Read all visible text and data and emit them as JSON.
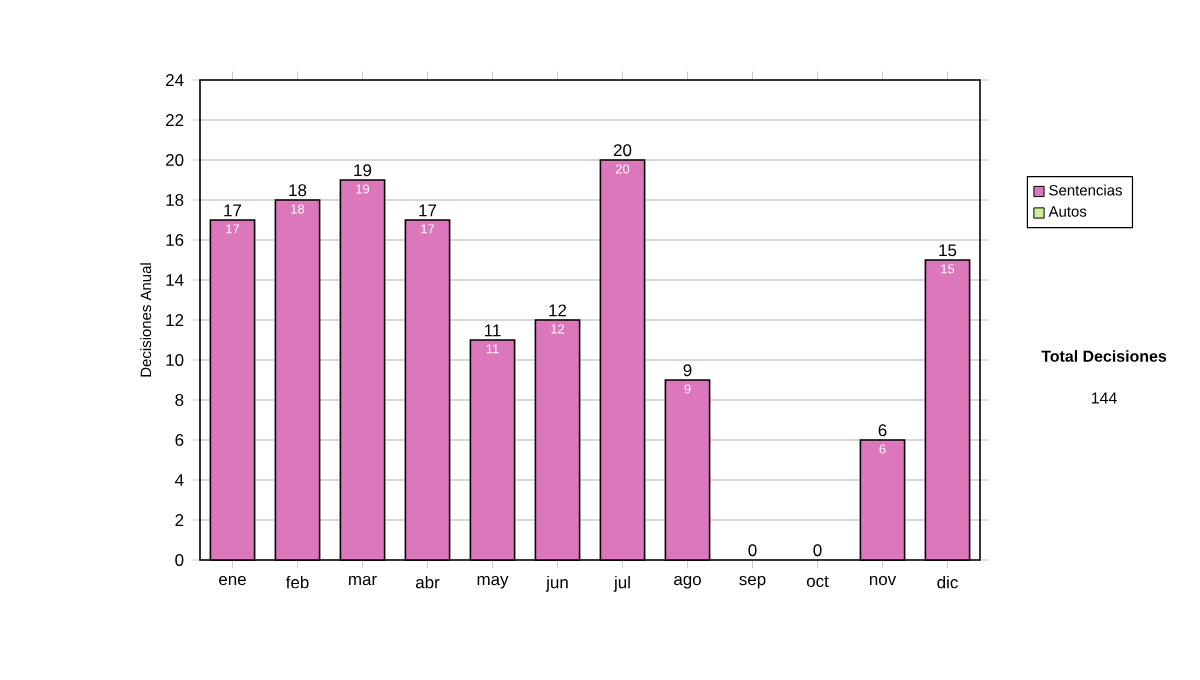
{
  "chart_data": {
    "type": "bar",
    "stacked": true,
    "ylabel": "Decisiones Anual",
    "categories": [
      "ene",
      "feb",
      "mar",
      "abr",
      "may",
      "jun",
      "jul",
      "ago",
      "sep",
      "oct",
      "nov",
      "dic"
    ],
    "series": [
      {
        "name": "Sentencias",
        "color": "#dd77bb",
        "values": [
          17,
          18,
          19,
          17,
          11,
          12,
          20,
          9,
          0,
          0,
          6,
          15
        ],
        "value_labels": [
          "17",
          "18",
          "19",
          "17",
          "11",
          "12",
          "20",
          "9",
          null,
          null,
          "6",
          "15"
        ]
      },
      {
        "name": "Autos",
        "color": "#ccee99",
        "values": [
          0,
          0,
          0,
          0,
          0,
          0,
          0,
          0,
          0,
          0,
          0,
          0
        ]
      }
    ],
    "totals": [
      "17",
      "18",
      "19",
      "17",
      "11",
      "12",
      "20",
      "9",
      "0",
      "0",
      "6",
      "15"
    ],
    "ylim": [
      0,
      24
    ],
    "yticks": [
      0,
      2,
      4,
      6,
      8,
      10,
      12,
      14,
      16,
      18,
      20,
      22,
      24
    ],
    "grid": "y",
    "legend": "right",
    "annotations": [
      "**Total Decisiones**",
      "144"
    ]
  }
}
